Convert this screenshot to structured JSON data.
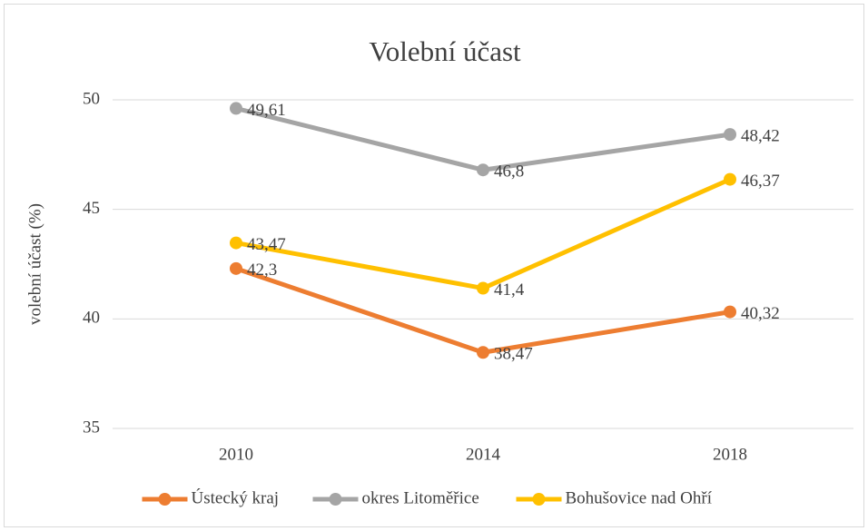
{
  "chart_data": {
    "type": "line",
    "title": "Volební účast",
    "y_label": "volební účast (%)",
    "categories": [
      "2010",
      "2014",
      "2018"
    ],
    "series": [
      {
        "name": "Ústecký kraj",
        "color": "#ED7D31",
        "values": [
          42.3,
          38.47,
          40.32
        ],
        "value_labels": [
          "42,3",
          "38,47",
          "40,32"
        ]
      },
      {
        "name": "okres Litoměřice",
        "color": "#A5A5A5",
        "values": [
          49.61,
          46.8,
          48.42
        ],
        "value_labels": [
          "49,61",
          "46,8",
          "48,42"
        ]
      },
      {
        "name": "Bohušovice nad Ohří",
        "color": "#FFC000",
        "values": [
          43.47,
          41.4,
          46.37
        ],
        "value_labels": [
          "43,47",
          "41,4",
          "46,37"
        ]
      }
    ],
    "ylim": [
      35,
      50
    ],
    "yticks": [
      35,
      40,
      45,
      50
    ],
    "grid": true,
    "legend": "bottom"
  }
}
